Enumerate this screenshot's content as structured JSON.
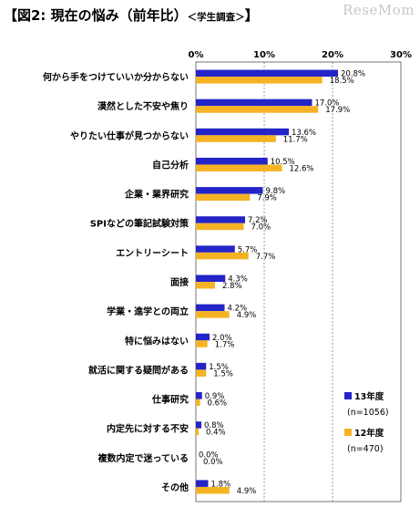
{
  "title": {
    "main": "【図2:  現在の悩み（前年比）",
    "sub": "＜学生調査＞",
    "close": "】"
  },
  "watermark": "ReseMom",
  "chart_data": {
    "type": "bar",
    "orientation": "horizontal",
    "categories": [
      "何から手をつけていいか分からない",
      "漠然とした不安や焦り",
      "やりたい仕事が見つからない",
      "自己分析",
      "企業・業界研究",
      "SPIなどの筆記試験対策",
      "エントリーシート",
      "面接",
      "学業・進学との両立",
      "特に悩みはない",
      "就活に関する疑問がある",
      "仕事研究",
      "内定先に対する不安",
      "複数内定で迷っている",
      "その他"
    ],
    "series": [
      {
        "name": "13年度",
        "n": "(n=1056)",
        "color": "#2424c8",
        "values": [
          20.8,
          17.0,
          13.6,
          10.5,
          9.8,
          7.2,
          5.7,
          4.3,
          4.2,
          2.0,
          1.5,
          0.9,
          0.8,
          0.0,
          1.8
        ],
        "labels": [
          "20.8%",
          "17.0%",
          "13.6%",
          "10.5%",
          "9.8%",
          "7.2%",
          "5.7%",
          "4.3%",
          "4.2%",
          "2.0%",
          "1.5%",
          "0.9%",
          "0.8%",
          "0.0%",
          "1.8%"
        ]
      },
      {
        "name": "12年度",
        "n": "(n=470)",
        "color": "#f5b324",
        "values": [
          18.5,
          17.9,
          11.7,
          12.6,
          7.9,
          7.0,
          7.7,
          2.8,
          4.9,
          1.7,
          1.5,
          0.6,
          0.4,
          0.0,
          4.9
        ],
        "labels": [
          "18.5%",
          "17.9%",
          "11.7%",
          "12.6%",
          "7.9%",
          "7.0%",
          "7.7%",
          "2.8%",
          "4.9%",
          "1.7%",
          "1.5%",
          "0.6%",
          "0.4%",
          "0.0%",
          "4.9%"
        ]
      }
    ],
    "x_ticks": [
      0,
      10,
      20,
      30
    ],
    "x_tick_labels": [
      "0%",
      "10%",
      "20%",
      "30%"
    ],
    "xlim": [
      0,
      30
    ],
    "grid": true,
    "legend_position": "bottom-right"
  }
}
